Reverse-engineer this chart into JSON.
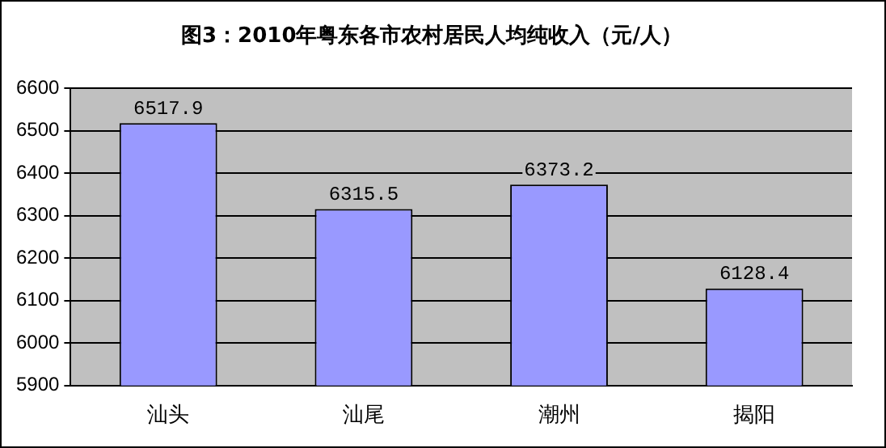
{
  "chart_data": {
    "type": "bar",
    "title": "图3：2010年粤东各市农村居民人均纯收入（元/人）",
    "categories": [
      "汕头",
      "汕尾",
      "潮州",
      "揭阳"
    ],
    "values": [
      6517.9,
      6315.5,
      6373.2,
      6128.4
    ],
    "color": "#9999ff",
    "ylim": [
      5900,
      6600
    ],
    "yticks": [
      5900,
      6000,
      6100,
      6200,
      6300,
      6400,
      6500,
      6600
    ],
    "grid": "y",
    "data_labels": true,
    "legend": false
  }
}
